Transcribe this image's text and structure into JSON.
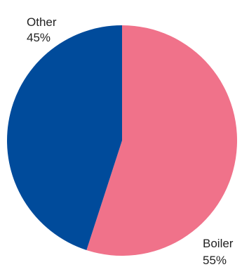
{
  "chart_data": {
    "type": "pie",
    "slices": [
      {
        "label": "Boiler",
        "value": 55,
        "value_label": "55%",
        "color": "#F0728A"
      },
      {
        "label": "Other",
        "value": 45,
        "value_label": "45%",
        "color": "#004B9B"
      }
    ],
    "start_angle": "12 o'clock",
    "direction": "clockwise",
    "legend": "none",
    "labels": "outside"
  }
}
